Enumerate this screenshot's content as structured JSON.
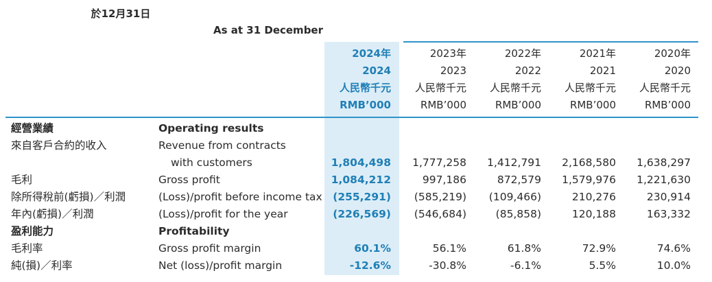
{
  "header": {
    "as_at_zh": "於12月31日",
    "as_at_en": "As at 31 December",
    "columns": [
      {
        "year_zh": "2024年",
        "year": "2024",
        "unit_zh": "人民幣千元",
        "unit_en": "RMB’000"
      },
      {
        "year_zh": "2023年",
        "year": "2023",
        "unit_zh": "人民幣千元",
        "unit_en": "RMB’000"
      },
      {
        "year_zh": "2022年",
        "year": "2022",
        "unit_zh": "人民幣千元",
        "unit_en": "RMB’000"
      },
      {
        "year_zh": "2021年",
        "year": "2021",
        "unit_zh": "人民幣千元",
        "unit_en": "RMB’000"
      },
      {
        "year_zh": "2020年",
        "year": "2020",
        "unit_zh": "人民幣千元",
        "unit_en": "RMB’000"
      }
    ]
  },
  "rows": [
    {
      "zh": "經營業績",
      "en": "Operating results",
      "values": [
        "",
        "",
        "",
        "",
        ""
      ]
    },
    {
      "zh": "來自客戶合約的收入",
      "en": "Revenue from contracts",
      "values": [
        "",
        "",
        "",
        "",
        ""
      ]
    },
    {
      "zh": "",
      "en": "with customers",
      "values": [
        "1,804,498",
        "1,777,258",
        "1,412,791",
        "2,168,580",
        "1,638,297"
      ]
    },
    {
      "zh": "毛利",
      "en": "Gross profit",
      "values": [
        "1,084,212",
        "997,186",
        "872,579",
        "1,579,976",
        "1,221,630"
      ]
    },
    {
      "zh": "除所得稅前(虧損)／利潤",
      "en": "(Loss)/profit before income tax",
      "values": [
        "(255,291)",
        "(585,219)",
        "(109,466)",
        "210,276",
        "230,914"
      ]
    },
    {
      "zh": "年內(虧損)／利潤",
      "en": "(Loss)/profit for the year",
      "values": [
        "(226,569)",
        "(546,684)",
        "(85,858)",
        "120,188",
        "163,332"
      ]
    },
    {
      "zh": "盈利能力",
      "en": "Profitability",
      "values": [
        "",
        "",
        "",
        "",
        ""
      ]
    },
    {
      "zh": "毛利率",
      "en": "Gross profit margin",
      "values": [
        "60.1%",
        "56.1%",
        "61.8%",
        "72.9%",
        "74.6%"
      ]
    },
    {
      "zh": "純(損)／利率",
      "en": "Net (loss)/profit margin",
      "values": [
        "-12.6%",
        "-30.8%",
        "-6.1%",
        "5.5%",
        "10.0%"
      ]
    }
  ],
  "colors": {
    "accent": "#2e93c8",
    "highlight_bg": "#dcedf7",
    "highlight_text": "#1f7fb6"
  }
}
